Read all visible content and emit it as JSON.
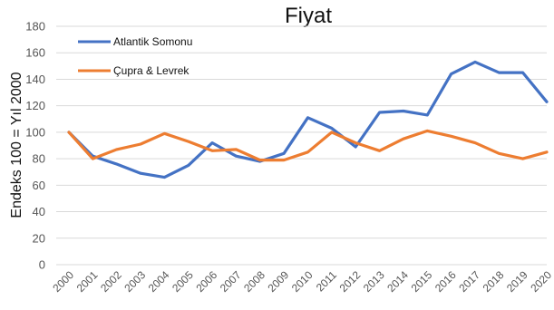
{
  "chart_data": {
    "type": "line",
    "title": "Fiyat",
    "ylabel": "Endeks 100 = Yıl 2000",
    "xlabel": "",
    "ylim": [
      0,
      180
    ],
    "yticks": [
      0,
      20,
      40,
      60,
      80,
      100,
      120,
      140,
      160,
      180
    ],
    "categories": [
      "2000",
      "2001",
      "2002",
      "2003",
      "2004",
      "2005",
      "2006",
      "2007",
      "2008",
      "2009",
      "2010",
      "2011",
      "2012",
      "2013",
      "2014",
      "2015",
      "2016",
      "2017",
      "2018",
      "2019",
      "2020"
    ],
    "grid": true,
    "legend_position": "top-left",
    "series": [
      {
        "name": "Atlantik Somonu",
        "color": "#4472C4",
        "values": [
          100,
          82,
          76,
          69,
          66,
          75,
          92,
          82,
          78,
          84,
          111,
          103,
          89,
          115,
          116,
          113,
          144,
          153,
          145,
          145,
          123
        ]
      },
      {
        "name": "Çupra & Levrek",
        "color": "#ED7D31",
        "values": [
          100,
          80,
          87,
          91,
          99,
          93,
          86,
          87,
          79,
          79,
          85,
          100,
          92,
          86,
          95,
          101,
          97,
          92,
          84,
          80,
          85
        ]
      }
    ]
  }
}
